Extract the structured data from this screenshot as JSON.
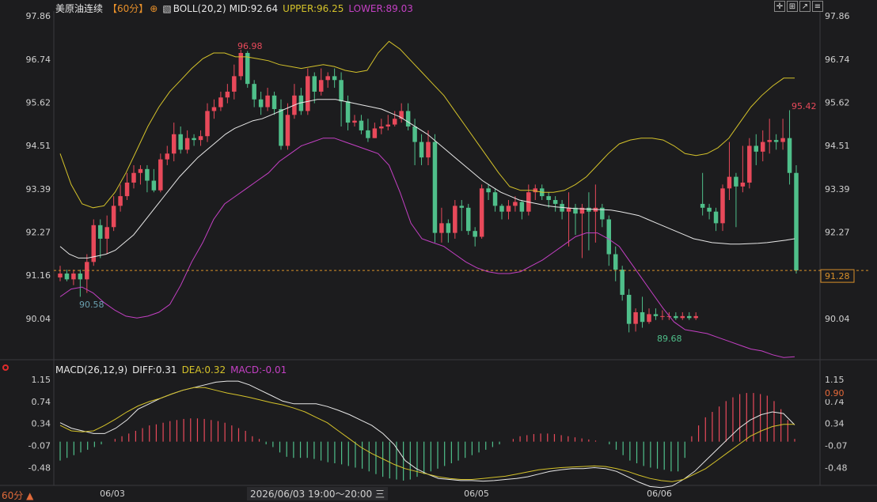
{
  "header": {
    "symbol": "美原油连续",
    "period_tag": "【60分】",
    "indicator": "BOLL(20,2)",
    "mid": "MID:92.64",
    "upper": "UPPER:96.25",
    "lower": "LOWER:89.03"
  },
  "macd_header": {
    "indicator": "MACD(26,12,9)",
    "diff": "DIFF:0.31",
    "dea": "DEA:0.32",
    "macd": "MACD:-0.01"
  },
  "footer": {
    "period": "60分 ▲",
    "cursor_time": "2026/06/03 19:00～20:00 三"
  },
  "colors": {
    "up": "#e8495a",
    "down": "#4fbf8a",
    "mid": "#e8e8e8",
    "upper": "#d4c22a",
    "lower": "#c440c4",
    "diff": "#e8e8e8",
    "dea": "#d4c22a",
    "price_line": "#d8902a"
  },
  "chart_data": [
    {
      "type": "candlestick",
      "title": "美原油连续",
      "y_ticks": [
        "97.86",
        "96.74",
        "95.62",
        "94.51",
        "93.39",
        "92.27",
        "91.16",
        "90.04"
      ],
      "x_ticks": [
        "06/03",
        "06/05",
        "06/06"
      ],
      "ylim": [
        89.28,
        97.86
      ],
      "annotations": {
        "high": "96.98",
        "low1": "90.58",
        "low2": "89.68",
        "last_high": "95.42",
        "current_price": "91.28"
      },
      "current_price": 91.28,
      "candles": [
        [
          91.1,
          91.2,
          91.4,
          91.0
        ],
        [
          91.2,
          91.05,
          91.3,
          91.0
        ],
        [
          91.05,
          91.2,
          91.3,
          90.9
        ],
        [
          91.2,
          91.05,
          91.3,
          90.6
        ],
        [
          91.05,
          91.5,
          91.7,
          90.7
        ],
        [
          91.5,
          92.45,
          92.6,
          91.4
        ],
        [
          92.45,
          92.1,
          92.6,
          91.6
        ],
        [
          92.1,
          92.4,
          92.7,
          91.7
        ],
        [
          92.4,
          92.95,
          93.2,
          92.3
        ],
        [
          92.95,
          93.2,
          93.5,
          92.8
        ],
        [
          93.2,
          93.55,
          93.8,
          93.1
        ],
        [
          93.55,
          93.8,
          94.0,
          93.4
        ],
        [
          93.8,
          93.9,
          94.0,
          93.5
        ],
        [
          93.9,
          93.6,
          94.0,
          93.3
        ],
        [
          93.6,
          93.35,
          93.9,
          93.3
        ],
        [
          93.35,
          94.15,
          94.3,
          93.3
        ],
        [
          94.15,
          94.3,
          94.5,
          94.0
        ],
        [
          94.3,
          94.8,
          95.1,
          94.1
        ],
        [
          94.8,
          94.4,
          95.0,
          94.3
        ],
        [
          94.4,
          94.7,
          94.9,
          94.3
        ],
        [
          94.7,
          94.65,
          94.8,
          94.5
        ],
        [
          94.65,
          94.75,
          94.9,
          94.5
        ],
        [
          94.75,
          95.4,
          95.6,
          94.6
        ],
        [
          95.4,
          95.5,
          95.7,
          95.2
        ],
        [
          95.5,
          95.75,
          95.9,
          95.4
        ],
        [
          95.75,
          95.9,
          96.1,
          95.6
        ],
        [
          95.9,
          96.3,
          96.6,
          95.7
        ],
        [
          96.3,
          96.9,
          96.98,
          96.2
        ],
        [
          96.9,
          96.1,
          96.95,
          96.0
        ],
        [
          96.1,
          95.7,
          96.2,
          95.5
        ],
        [
          95.7,
          95.5,
          95.9,
          95.3
        ],
        [
          95.5,
          95.8,
          96.0,
          95.4
        ],
        [
          95.8,
          95.45,
          95.9,
          95.3
        ],
        [
          95.45,
          94.5,
          95.7,
          94.4
        ],
        [
          94.5,
          95.3,
          95.6,
          94.4
        ],
        [
          95.3,
          95.8,
          96.1,
          95.2
        ],
        [
          95.8,
          95.4,
          96.0,
          95.3
        ],
        [
          95.4,
          96.3,
          96.5,
          95.3
        ],
        [
          96.3,
          95.9,
          96.4,
          95.6
        ],
        [
          95.9,
          96.2,
          96.5,
          95.8
        ],
        [
          96.2,
          96.3,
          96.4,
          96.0
        ],
        [
          96.3,
          96.2,
          96.5,
          96.0
        ],
        [
          96.2,
          95.65,
          96.4,
          95.0
        ],
        [
          95.65,
          95.1,
          95.8,
          94.9
        ],
        [
          95.1,
          95.15,
          95.3,
          95.0
        ],
        [
          95.15,
          94.9,
          95.3,
          94.8
        ],
        [
          94.9,
          94.7,
          95.2,
          94.6
        ],
        [
          94.7,
          94.95,
          95.1,
          94.7
        ],
        [
          94.95,
          95.0,
          95.2,
          94.8
        ],
        [
          95.0,
          95.05,
          95.3,
          94.9
        ],
        [
          95.05,
          95.2,
          95.4,
          95.0
        ],
        [
          95.2,
          95.4,
          95.6,
          95.1
        ],
        [
          95.4,
          95.0,
          95.6,
          94.9
        ],
        [
          95.0,
          94.6,
          95.2,
          94.0
        ],
        [
          94.6,
          94.2,
          94.8,
          94.0
        ],
        [
          94.2,
          94.6,
          94.9,
          94.0
        ],
        [
          94.6,
          92.25,
          94.8,
          92.0
        ],
        [
          92.25,
          92.5,
          92.9,
          92.0
        ],
        [
          92.5,
          92.25,
          92.6,
          92.0
        ],
        [
          92.25,
          92.95,
          93.1,
          92.1
        ],
        [
          92.95,
          92.9,
          93.1,
          92.3
        ],
        [
          92.9,
          92.3,
          93.0,
          92.2
        ],
        [
          92.3,
          92.15,
          92.4,
          91.9
        ],
        [
          92.15,
          93.4,
          93.5,
          92.1
        ],
        [
          93.4,
          93.3,
          93.5,
          93.1
        ],
        [
          93.3,
          92.95,
          93.4,
          92.8
        ],
        [
          92.95,
          92.8,
          93.0,
          92.6
        ],
        [
          92.8,
          92.95,
          93.1,
          92.6
        ],
        [
          92.95,
          93.05,
          93.2,
          92.8
        ],
        [
          93.05,
          92.8,
          93.1,
          92.6
        ],
        [
          92.8,
          93.3,
          93.5,
          92.7
        ],
        [
          93.3,
          93.4,
          93.5,
          93.1
        ],
        [
          93.4,
          93.2,
          93.5,
          93.1
        ],
        [
          93.2,
          93.1,
          93.3,
          92.9
        ],
        [
          93.1,
          93.0,
          93.2,
          92.8
        ],
        [
          93.0,
          92.8,
          93.1,
          92.6
        ],
        [
          92.8,
          92.9,
          93.3,
          91.9
        ],
        [
          92.9,
          92.75,
          93.0,
          92.2
        ],
        [
          92.75,
          92.9,
          93.0,
          91.6
        ],
        [
          92.9,
          92.8,
          93.3,
          91.8
        ],
        [
          92.8,
          92.9,
          93.5,
          92.0
        ],
        [
          92.9,
          92.6,
          93.0,
          92.4
        ],
        [
          92.6,
          91.7,
          92.7,
          91.4
        ],
        [
          91.7,
          91.3,
          91.9,
          91.0
        ],
        [
          91.3,
          90.65,
          91.4,
          90.5
        ],
        [
          90.65,
          89.9,
          90.8,
          89.68
        ],
        [
          89.9,
          90.2,
          90.3,
          89.7
        ],
        [
          90.2,
          89.95,
          90.6,
          89.8
        ],
        [
          89.95,
          90.15,
          90.3,
          89.9
        ],
        [
          90.15,
          90.1,
          90.3,
          90.0
        ],
        [
          90.1,
          90.1,
          90.25,
          90.0
        ],
        [
          90.1,
          90.1,
          90.2,
          90.0
        ],
        [
          90.1,
          90.05,
          90.2,
          90.0
        ],
        [
          90.05,
          90.1,
          90.2,
          90.0
        ],
        [
          90.1,
          90.05,
          90.2,
          90.0
        ],
        [
          90.05,
          90.1,
          90.2,
          90.0
        ],
        [
          93.0,
          92.9,
          93.8,
          92.7
        ],
        [
          92.9,
          92.8,
          93.0,
          92.6
        ],
        [
          92.8,
          92.5,
          92.9,
          92.3
        ],
        [
          92.5,
          93.4,
          93.5,
          92.3
        ],
        [
          93.4,
          93.7,
          94.6,
          93.1
        ],
        [
          93.7,
          93.45,
          93.8,
          92.4
        ],
        [
          93.45,
          93.55,
          94.5,
          93.3
        ],
        [
          93.55,
          94.5,
          94.7,
          93.4
        ],
        [
          94.5,
          94.35,
          94.8,
          94.0
        ],
        [
          94.35,
          94.6,
          94.9,
          94.1
        ],
        [
          94.6,
          94.65,
          95.2,
          94.3
        ],
        [
          94.65,
          94.6,
          94.8,
          94.4
        ],
        [
          94.6,
          94.7,
          95.2,
          94.4
        ],
        [
          94.7,
          93.8,
          95.42,
          93.5
        ],
        [
          93.8,
          91.28,
          94.0,
          91.2
        ]
      ],
      "mid": [
        91.9,
        91.7,
        91.6,
        91.6,
        91.65,
        91.7,
        91.8,
        92.0,
        92.2,
        92.5,
        92.8,
        93.1,
        93.4,
        93.7,
        93.95,
        94.2,
        94.4,
        94.6,
        94.8,
        94.95,
        95.05,
        95.15,
        95.2,
        95.3,
        95.4,
        95.5,
        95.6,
        95.65,
        95.7,
        95.7,
        95.7,
        95.65,
        95.6,
        95.55,
        95.5,
        95.45,
        95.35,
        95.25,
        95.1,
        94.95,
        94.8,
        94.6,
        94.4,
        94.2,
        94.0,
        93.8,
        93.6,
        93.45,
        93.3,
        93.2,
        93.1,
        93.05,
        93.0,
        92.95,
        92.92,
        92.9,
        92.88,
        92.87,
        92.86,
        92.85,
        92.84,
        92.8,
        92.75,
        92.7,
        92.6,
        92.5,
        92.4,
        92.3,
        92.2,
        92.1,
        92.05,
        92.0,
        91.98,
        91.96,
        91.96,
        91.97,
        91.98,
        92.0,
        92.03,
        92.06,
        92.1
      ],
      "upper": [
        94.3,
        93.5,
        93.0,
        92.9,
        92.95,
        93.3,
        93.8,
        94.4,
        95.0,
        95.5,
        95.9,
        96.2,
        96.5,
        96.75,
        96.9,
        96.9,
        96.8,
        96.8,
        96.75,
        96.7,
        96.6,
        96.55,
        96.5,
        96.55,
        96.6,
        96.55,
        96.45,
        96.4,
        96.45,
        96.9,
        97.2,
        97.0,
        96.7,
        96.4,
        96.1,
        95.8,
        95.4,
        95.0,
        94.6,
        94.2,
        93.8,
        93.45,
        93.35,
        93.35,
        93.3,
        93.3,
        93.35,
        93.5,
        93.7,
        94.0,
        94.3,
        94.55,
        94.65,
        94.7,
        94.7,
        94.65,
        94.5,
        94.3,
        94.25,
        94.3,
        94.45,
        94.7,
        95.1,
        95.5,
        95.8,
        96.05,
        96.25,
        96.25
      ],
      "lower": [
        90.6,
        90.8,
        90.85,
        90.7,
        90.45,
        90.25,
        90.1,
        90.05,
        90.1,
        90.2,
        90.4,
        90.9,
        91.5,
        92.0,
        92.6,
        93.0,
        93.2,
        93.4,
        93.6,
        93.8,
        94.1,
        94.3,
        94.5,
        94.6,
        94.7,
        94.7,
        94.6,
        94.5,
        94.4,
        94.3,
        94.0,
        93.3,
        92.5,
        92.1,
        92.0,
        91.9,
        91.7,
        91.5,
        91.35,
        91.25,
        91.2,
        91.2,
        91.25,
        91.4,
        91.55,
        91.75,
        91.95,
        92.15,
        92.25,
        92.25,
        92.1,
        91.9,
        91.5,
        91.1,
        90.7,
        90.3,
        89.95,
        89.75,
        89.7,
        89.65,
        89.55,
        89.45,
        89.35,
        89.25,
        89.2,
        89.1,
        89.03,
        89.05
      ]
    },
    {
      "type": "bar",
      "title": "MACD(26,12,9)",
      "y_ticks": [
        "1.15",
        "0.74",
        "0.34",
        "-0.07",
        "-0.48"
      ],
      "ylim": [
        -0.78,
        1.15
      ],
      "label_right": "0.90",
      "hist": [
        -0.35,
        -0.3,
        -0.25,
        -0.2,
        -0.15,
        -0.1,
        -0.05,
        0.0,
        0.05,
        0.1,
        0.15,
        0.2,
        0.25,
        0.3,
        0.32,
        0.35,
        0.38,
        0.4,
        0.42,
        0.43,
        0.43,
        0.42,
        0.4,
        0.38,
        0.35,
        0.3,
        0.25,
        0.2,
        0.1,
        0.05,
        -0.05,
        -0.1,
        -0.2,
        -0.28,
        -0.3,
        -0.3,
        -0.3,
        -0.32,
        -0.35,
        -0.38,
        -0.4,
        -0.42,
        -0.45,
        -0.48,
        -0.5,
        -0.55,
        -0.6,
        -0.65,
        -0.68,
        -0.7,
        -0.72,
        -0.7,
        -0.65,
        -0.6,
        -0.55,
        -0.5,
        -0.45,
        -0.4,
        -0.35,
        -0.3,
        -0.25,
        -0.2,
        -0.15,
        -0.1,
        -0.05,
        0.0,
        0.05,
        0.1,
        0.12,
        0.14,
        0.15,
        0.15,
        0.14,
        0.12,
        0.1,
        0.08,
        0.06,
        0.04,
        0.02,
        0.0,
        -0.05,
        -0.15,
        -0.25,
        -0.35,
        -0.4,
        -0.45,
        -0.48,
        -0.5,
        -0.52,
        -0.55,
        -0.55,
        -0.3,
        0.1,
        0.3,
        0.45,
        0.55,
        0.65,
        0.75,
        0.82,
        0.88,
        0.9,
        0.9,
        0.88,
        0.85,
        0.75,
        0.6,
        0.4,
        0.05
      ],
      "diff": [
        0.35,
        0.25,
        0.2,
        0.15,
        0.15,
        0.25,
        0.4,
        0.6,
        0.7,
        0.8,
        0.88,
        0.95,
        1.0,
        1.05,
        1.1,
        1.12,
        1.12,
        1.05,
        0.95,
        0.85,
        0.75,
        0.7,
        0.7,
        0.7,
        0.65,
        0.58,
        0.5,
        0.4,
        0.3,
        0.15,
        -0.05,
        -0.35,
        -0.5,
        -0.6,
        -0.68,
        -0.7,
        -0.72,
        -0.72,
        -0.73,
        -0.72,
        -0.7,
        -0.68,
        -0.65,
        -0.6,
        -0.55,
        -0.52,
        -0.5,
        -0.5,
        -0.48,
        -0.5,
        -0.55,
        -0.65,
        -0.75,
        -0.83,
        -0.85,
        -0.82,
        -0.7,
        -0.55,
        -0.35,
        -0.15,
        0.05,
        0.25,
        0.4,
        0.5,
        0.55,
        0.52,
        0.31
      ],
      "dea": [
        0.3,
        0.2,
        0.18,
        0.2,
        0.3,
        0.42,
        0.55,
        0.66,
        0.74,
        0.8,
        0.88,
        0.95,
        1.0,
        1.0,
        0.95,
        0.9,
        0.86,
        0.82,
        0.77,
        0.72,
        0.68,
        0.62,
        0.55,
        0.45,
        0.35,
        0.2,
        0.05,
        -0.1,
        -0.22,
        -0.32,
        -0.42,
        -0.5,
        -0.55,
        -0.6,
        -0.65,
        -0.68,
        -0.7,
        -0.7,
        -0.68,
        -0.66,
        -0.64,
        -0.6,
        -0.56,
        -0.52,
        -0.5,
        -0.48,
        -0.47,
        -0.46,
        -0.45,
        -0.46,
        -0.5,
        -0.55,
        -0.62,
        -0.68,
        -0.72,
        -0.74,
        -0.7,
        -0.6,
        -0.5,
        -0.35,
        -0.2,
        -0.05,
        0.1,
        0.2,
        0.28,
        0.32,
        0.32
      ]
    }
  ]
}
